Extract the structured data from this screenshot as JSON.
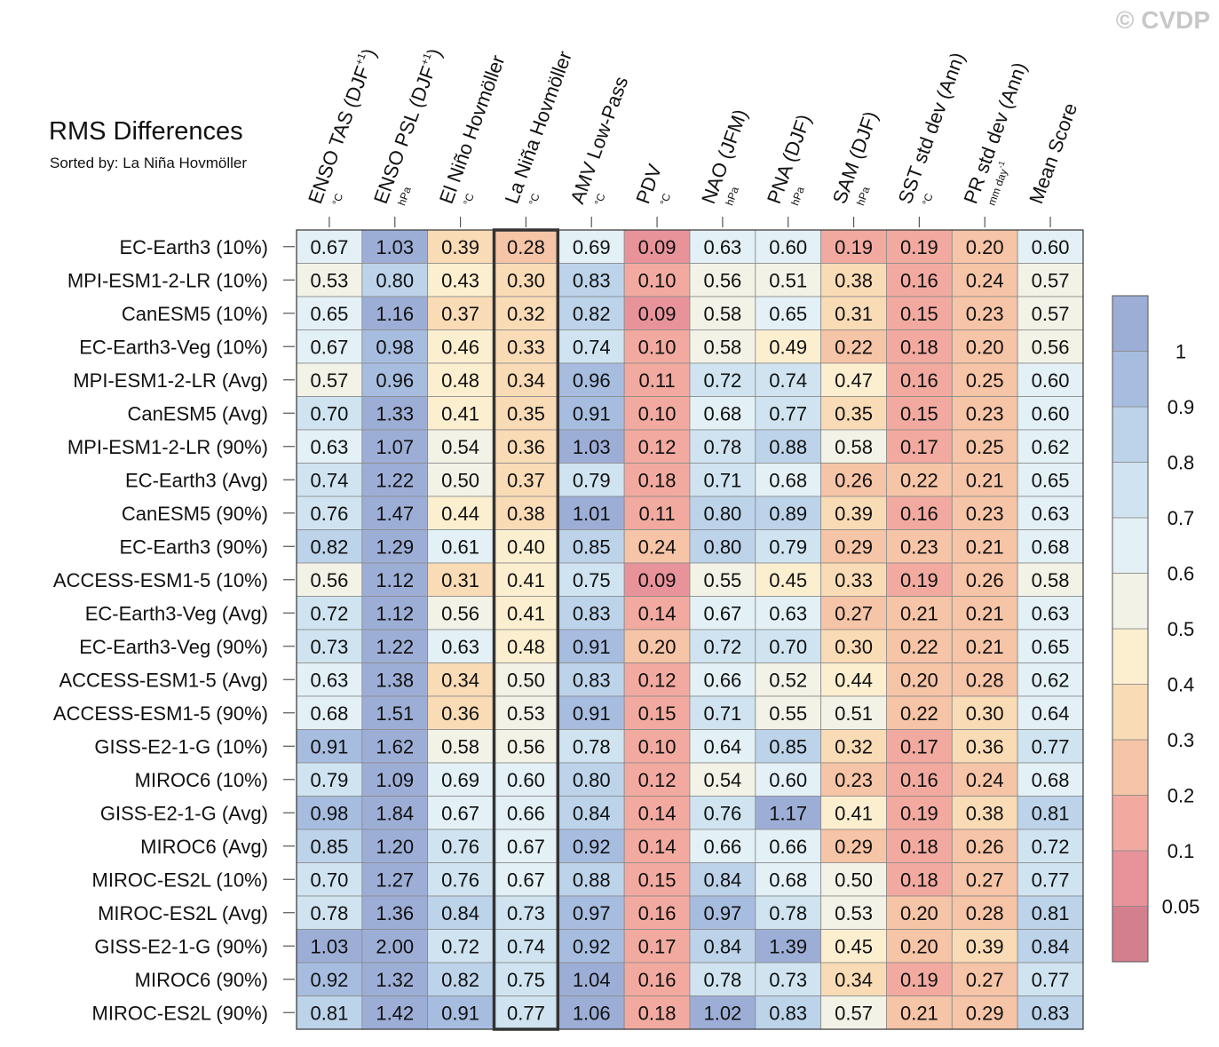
{
  "credit": "© CVDP",
  "chart_data": {
    "type": "heatmap",
    "title": "RMS Differences",
    "subtitle": "Sorted by: La Niña Hovmöller",
    "highlight_column": 3,
    "columns": [
      {
        "label": "ENSO TAS (DJF",
        "sup": "+1",
        "close": ")",
        "unit": "°C"
      },
      {
        "label": "ENSO PSL (DJF",
        "sup": "+1",
        "close": ")",
        "unit": "hPa"
      },
      {
        "label": "El Niño Hovmöller",
        "sup": "",
        "close": "",
        "unit": "°C"
      },
      {
        "label": "La Niña Hovmöller",
        "sup": "",
        "close": "",
        "unit": "°C"
      },
      {
        "label": "AMV Low-Pass",
        "sup": "",
        "close": "",
        "unit": "°C"
      },
      {
        "label": "PDV",
        "sup": "",
        "close": "",
        "unit": "°C"
      },
      {
        "label": "NAO (JFM)",
        "sup": "",
        "close": "",
        "unit": "hPa"
      },
      {
        "label": "PNA (DJF)",
        "sup": "",
        "close": "",
        "unit": "hPa"
      },
      {
        "label": "SAM (DJF)",
        "sup": "",
        "close": "",
        "unit": "hPa"
      },
      {
        "label": "SST std dev (Ann)",
        "sup": "",
        "close": "",
        "unit": "°C"
      },
      {
        "label": "PR std dev (Ann)",
        "sup": "",
        "close": "",
        "unit": "mm day",
        "unit_sup": "-1"
      },
      {
        "label": "Mean Score",
        "sup": "",
        "close": "",
        "unit": ""
      }
    ],
    "rows": [
      {
        "name": "EC-Earth3 (10%)",
        "values": [
          "0.67",
          "1.03",
          "0.39",
          "0.28",
          "0.69",
          "0.09",
          "0.63",
          "0.60",
          "0.19",
          "0.19",
          "0.20",
          "0.60"
        ]
      },
      {
        "name": "MPI-ESM1-2-LR (10%)",
        "values": [
          "0.53",
          "0.80",
          "0.43",
          "0.30",
          "0.83",
          "0.10",
          "0.56",
          "0.51",
          "0.38",
          "0.16",
          "0.24",
          "0.57"
        ]
      },
      {
        "name": "CanESM5 (10%)",
        "values": [
          "0.65",
          "1.16",
          "0.37",
          "0.32",
          "0.82",
          "0.09",
          "0.58",
          "0.65",
          "0.31",
          "0.15",
          "0.23",
          "0.57"
        ]
      },
      {
        "name": "EC-Earth3-Veg (10%)",
        "values": [
          "0.67",
          "0.98",
          "0.46",
          "0.33",
          "0.74",
          "0.10",
          "0.58",
          "0.49",
          "0.22",
          "0.18",
          "0.20",
          "0.56"
        ]
      },
      {
        "name": "MPI-ESM1-2-LR (Avg)",
        "values": [
          "0.57",
          "0.96",
          "0.48",
          "0.34",
          "0.96",
          "0.11",
          "0.72",
          "0.74",
          "0.47",
          "0.16",
          "0.25",
          "0.60"
        ]
      },
      {
        "name": "CanESM5 (Avg)",
        "values": [
          "0.70",
          "1.33",
          "0.41",
          "0.35",
          "0.91",
          "0.10",
          "0.68",
          "0.77",
          "0.35",
          "0.15",
          "0.23",
          "0.60"
        ]
      },
      {
        "name": "MPI-ESM1-2-LR (90%)",
        "values": [
          "0.63",
          "1.07",
          "0.54",
          "0.36",
          "1.03",
          "0.12",
          "0.78",
          "0.88",
          "0.58",
          "0.17",
          "0.25",
          "0.62"
        ]
      },
      {
        "name": "EC-Earth3 (Avg)",
        "values": [
          "0.74",
          "1.22",
          "0.50",
          "0.37",
          "0.79",
          "0.18",
          "0.71",
          "0.68",
          "0.26",
          "0.22",
          "0.21",
          "0.65"
        ]
      },
      {
        "name": "CanESM5 (90%)",
        "values": [
          "0.76",
          "1.47",
          "0.44",
          "0.38",
          "1.01",
          "0.11",
          "0.80",
          "0.89",
          "0.39",
          "0.16",
          "0.23",
          "0.63"
        ]
      },
      {
        "name": "EC-Earth3 (90%)",
        "values": [
          "0.82",
          "1.29",
          "0.61",
          "0.40",
          "0.85",
          "0.24",
          "0.80",
          "0.79",
          "0.29",
          "0.23",
          "0.21",
          "0.68"
        ]
      },
      {
        "name": "ACCESS-ESM1-5 (10%)",
        "values": [
          "0.56",
          "1.12",
          "0.31",
          "0.41",
          "0.75",
          "0.09",
          "0.55",
          "0.45",
          "0.33",
          "0.19",
          "0.26",
          "0.58"
        ]
      },
      {
        "name": "EC-Earth3-Veg (Avg)",
        "values": [
          "0.72",
          "1.12",
          "0.56",
          "0.41",
          "0.83",
          "0.14",
          "0.67",
          "0.63",
          "0.27",
          "0.21",
          "0.21",
          "0.63"
        ]
      },
      {
        "name": "EC-Earth3-Veg (90%)",
        "values": [
          "0.73",
          "1.22",
          "0.63",
          "0.48",
          "0.91",
          "0.20",
          "0.72",
          "0.70",
          "0.30",
          "0.22",
          "0.21",
          "0.65"
        ]
      },
      {
        "name": "ACCESS-ESM1-5 (Avg)",
        "values": [
          "0.63",
          "1.38",
          "0.34",
          "0.50",
          "0.83",
          "0.12",
          "0.66",
          "0.52",
          "0.44",
          "0.20",
          "0.28",
          "0.62"
        ]
      },
      {
        "name": "ACCESS-ESM1-5 (90%)",
        "values": [
          "0.68",
          "1.51",
          "0.36",
          "0.53",
          "0.91",
          "0.15",
          "0.71",
          "0.55",
          "0.51",
          "0.22",
          "0.30",
          "0.64"
        ]
      },
      {
        "name": "GISS-E2-1-G (10%)",
        "values": [
          "0.91",
          "1.62",
          "0.58",
          "0.56",
          "0.78",
          "0.10",
          "0.64",
          "0.85",
          "0.32",
          "0.17",
          "0.36",
          "0.77"
        ]
      },
      {
        "name": "MIROC6 (10%)",
        "values": [
          "0.79",
          "1.09",
          "0.69",
          "0.60",
          "0.80",
          "0.12",
          "0.54",
          "0.60",
          "0.23",
          "0.16",
          "0.24",
          "0.68"
        ]
      },
      {
        "name": "GISS-E2-1-G (Avg)",
        "values": [
          "0.98",
          "1.84",
          "0.67",
          "0.66",
          "0.84",
          "0.14",
          "0.76",
          "1.17",
          "0.41",
          "0.19",
          "0.38",
          "0.81"
        ]
      },
      {
        "name": "MIROC6 (Avg)",
        "values": [
          "0.85",
          "1.20",
          "0.76",
          "0.67",
          "0.92",
          "0.14",
          "0.66",
          "0.66",
          "0.29",
          "0.18",
          "0.26",
          "0.72"
        ]
      },
      {
        "name": "MIROC-ES2L (10%)",
        "values": [
          "0.70",
          "1.27",
          "0.76",
          "0.67",
          "0.88",
          "0.15",
          "0.84",
          "0.68",
          "0.50",
          "0.18",
          "0.27",
          "0.77"
        ]
      },
      {
        "name": "MIROC-ES2L (Avg)",
        "values": [
          "0.78",
          "1.36",
          "0.84",
          "0.73",
          "0.97",
          "0.16",
          "0.97",
          "0.78",
          "0.53",
          "0.20",
          "0.28",
          "0.81"
        ]
      },
      {
        "name": "GISS-E2-1-G (90%)",
        "values": [
          "1.03",
          "2.00",
          "0.72",
          "0.74",
          "0.92",
          "0.17",
          "0.84",
          "1.39",
          "0.45",
          "0.20",
          "0.39",
          "0.84"
        ]
      },
      {
        "name": "MIROC6 (90%)",
        "values": [
          "0.92",
          "1.32",
          "0.82",
          "0.75",
          "1.04",
          "0.16",
          "0.78",
          "0.73",
          "0.34",
          "0.19",
          "0.27",
          "0.77"
        ]
      },
      {
        "name": "MIROC-ES2L (90%)",
        "values": [
          "0.81",
          "1.42",
          "0.91",
          "0.77",
          "1.06",
          "0.18",
          "1.02",
          "0.83",
          "0.57",
          "0.21",
          "0.29",
          "0.83"
        ]
      }
    ],
    "colorbar": {
      "levels": [
        "0.05",
        "0.1",
        "0.2",
        "0.3",
        "0.4",
        "0.5",
        "0.6",
        "0.7",
        "0.8",
        "0.9",
        "1"
      ],
      "colors": [
        "#d47f8d",
        "#e8939a",
        "#f2aaa0",
        "#f6c4a6",
        "#f9dbb6",
        "#fcefd0",
        "#f3f2e7",
        "#e3f0f6",
        "#cfe4f0",
        "#bcd3ea",
        "#a7bde0",
        "#9daed6"
      ]
    }
  }
}
